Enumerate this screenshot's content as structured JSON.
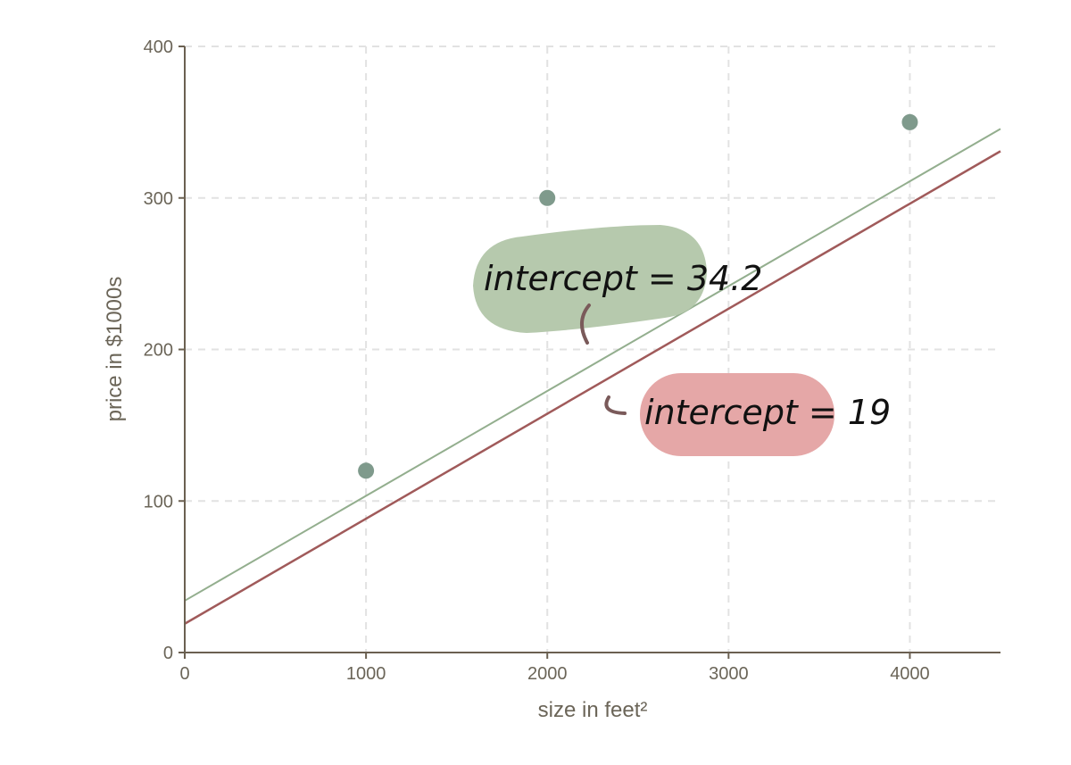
{
  "chart_data": {
    "type": "scatter",
    "xlabel": "size in feet²",
    "ylabel": "price in $1000s",
    "xlim": [
      0,
      4500
    ],
    "ylim": [
      0,
      400
    ],
    "xticks": [
      "0",
      "1000",
      "2000",
      "3000",
      "4000"
    ],
    "yticks": [
      "0",
      "100",
      "200",
      "300",
      "400"
    ],
    "grid": true,
    "points": [
      {
        "x": 1000,
        "y": 120
      },
      {
        "x": 2000,
        "y": 300
      },
      {
        "x": 4000,
        "y": 350
      }
    ],
    "lines": [
      {
        "intercept": 34.2,
        "slope": 0.0692,
        "color": "#93ae8e"
      },
      {
        "intercept": 19,
        "slope": 0.0693,
        "color": "#a05a5a"
      }
    ],
    "annotations": [
      {
        "text": "intercept = 34.2",
        "color": "#b6c9ad"
      },
      {
        "text": "intercept = 19",
        "color": "#e5a7a7"
      }
    ],
    "point_color": "#7f9a8c"
  }
}
